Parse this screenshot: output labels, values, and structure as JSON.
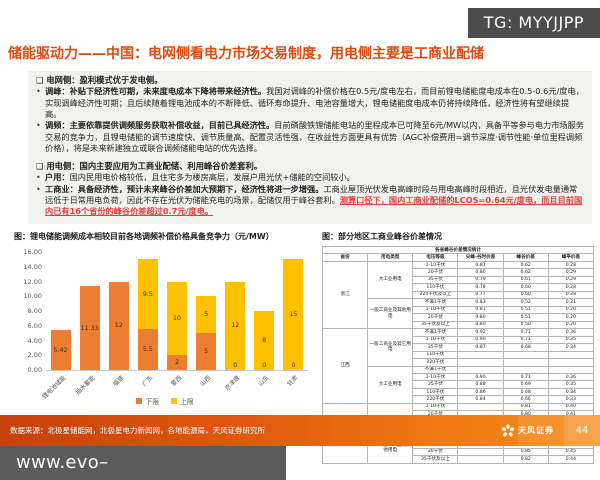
{
  "badge": {
    "text": "TG: MYYJJPP"
  },
  "title": "储能驱动力——中国：电网侧看电力市场交易制度，用电侧主要是工商业配储",
  "markers": {
    "section": "❑",
    "bullet": "•"
  },
  "sections": [
    {
      "header": "电网侧：盈利模式优于发电侧。",
      "bullets": [
        {
          "bold": "调峰：补贴下经济性可期，未来度电成本下降将带来经济性。",
          "text": "我国对调峰的补偿价格在0.5元/度电左右，而目前锂电储能度电成本在0.5-0.6元/度电，实现调峰经济性可期；且后续随着锂电池成本的不断降低、循环寿命提升、电池容量增大，锂电储能度电成本仍将持续降低，经济性将有望继续提高。",
          "highlight": ""
        },
        {
          "bold": "调频：主要依靠提供调频服务获取补偿收益，目前已具经济性。",
          "text": "目前磷酸铁锂储能电站的里程成本已可降至6元/MW以内，具备平等参与电力市场服务交易的竞争力，且锂电储能的调节速度快、调节质量高、配置灵活性强，在收益性方面更具有优势（AGC补偿费用=调节深度·调节性能·单位里程调频价格），将是未来新建独立或联合调频储能电站的优先选择。",
          "highlight": ""
        }
      ]
    },
    {
      "header": "用电侧：国内主要应用为工商业配储、利用峰谷价差套利。",
      "bullets": [
        {
          "bold": "户用：",
          "text": "国内民用电价格较低，且住宅多为楼房高层，发展户用光伏+储能的空间较小。",
          "highlight": ""
        },
        {
          "bold": "工商业：具备经济性，预计未来峰谷价差加大预期下，经济性将进一步增强。",
          "text": "工商业屋顶光伏发电高峰时段与用电高峰时段相近，且光伏发电量通常远低于日常用电负荷，因此不存在光伏为储能充电的场景，配储仅用于峰谷套利。",
          "highlight": "测算口径下，国内工商业配储的LCOS=0.64元/度电，而且目前国内已有16个省份的峰谷价差超过0.7元/度电。"
        }
      ]
    }
  ],
  "chart_data": [
    {
      "type": "bar",
      "stacked": true,
      "title": "图：锂电储能调频成本相较目前各地调频补偿价格具备竞争力（元/MW）",
      "categories": [
        "锂电池储能",
        "抽水蓄能",
        "福建",
        "广东",
        "蒙西",
        "山西",
        "京津唐",
        "山东",
        "甘肃"
      ],
      "series": [
        {
          "name": "下限",
          "color": "#ED7D31",
          "values": [
            5.42,
            11.33,
            12,
            5.5,
            2,
            5,
            0,
            0,
            0
          ]
        },
        {
          "name": "上限",
          "color": "#FFC000",
          "values": [
            0,
            0,
            0,
            9.5,
            10,
            5,
            12,
            8,
            15
          ]
        }
      ],
      "ylim": [
        0,
        16
      ],
      "ytick_step": 2,
      "legend_position": "bottom"
    },
    {
      "type": "table",
      "title": "图：部分地区工商业峰谷价差情况",
      "span_title": "各省峰谷价差情况统计",
      "columns": [
        "省份",
        "用电类型",
        "电压等级",
        "尖峰-谷时价差",
        "峰谷价差",
        "峰平价差"
      ],
      "groups": [
        {
          "province": "浙江",
          "blocks": [
            {
              "type": "大工业用电",
              "rows": [
                [
                  "1-10千伏",
                  "0.81",
                  "0.62",
                  "0.28"
                ],
                [
                  "20千伏",
                  "0.80",
                  "0.62",
                  "0.29"
                ],
                [
                  "35千伏",
                  "0.79",
                  "0.61",
                  "0.29"
                ],
                [
                  "110千伏",
                  "0.78",
                  "0.60",
                  "0.28"
                ],
                [
                  "220千伏及以上",
                  "0.77",
                  "0.60",
                  "0.28"
                ]
              ]
            },
            {
              "type": "一般工商业及其他用电",
              "rows": [
                [
                  "不满1千伏",
                  "0.83",
                  "0.52",
                  "0.21"
                ],
                [
                  "1-10千伏",
                  "0.81",
                  "0.51",
                  "0.20"
                ],
                [
                  "20千伏",
                  "0.80",
                  "0.51",
                  "0.20"
                ],
                [
                  "35千伏及以上",
                  "0.80",
                  "0.50",
                  "0.20"
                ]
              ]
            }
          ]
        },
        {
          "province": "江西",
          "blocks": [
            {
              "type": "一般工商业及其它用电",
              "rows": [
                [
                  "不满1千伏",
                  "0.92",
                  "0.71",
                  "0.36"
                ],
                [
                  "1-10千伏",
                  "0.90",
                  "0.71",
                  "0.35"
                ],
                [
                  "35千伏",
                  "0.87",
                  "0.68",
                  "0.34"
                ],
                [
                  "110千伏",
                  "",
                  "",
                  ""
                ],
                [
                  "220千伏",
                  "",
                  "",
                  ""
                ]
              ]
            },
            {
              "type": "大工业用电",
              "rows": [
                [
                  "不满1千伏",
                  "",
                  "",
                  ""
                ],
                [
                  "1-10千伏",
                  "0.90",
                  "0.71",
                  "0.36"
                ],
                [
                  "35千伏",
                  "0.88",
                  "0.69",
                  "0.35"
                ],
                [
                  "110千伏",
                  "0.86",
                  "0.68",
                  "0.34"
                ],
                [
                  "220千伏",
                  "0.84",
                  "0.66",
                  "0.33"
                ]
              ]
            }
          ]
        },
        {
          "province": "广东（广州、珠海、佛山、中山、东莞区域）",
          "blocks": [
            {
              "type": "一、大工业用电",
              "rows": [
                [
                  "1-10千伏",
                  "",
                  "0.81",
                  "0.40"
                ],
                [
                  "20千伏",
                  "",
                  "0.80",
                  "0.41"
                ],
                [
                  "35-110千伏",
                  "",
                  "0.77",
                  "0.41"
                ],
                [
                  "220千伏及以上",
                  "",
                  "0.74",
                  "0.39"
                ]
              ]
            },
            {
              "type": "二、一般工商业及其他用电",
              "rows": [
                [
                  "不满1千伏",
                  "",
                  "0.89",
                  "0.47"
                ],
                [
                  "1-10千伏",
                  "",
                  "0.85",
                  "0.45"
                ],
                [
                  "20千伏",
                  "",
                  "0.85",
                  "0.45"
                ],
                [
                  "35千伏及以上",
                  "",
                  "0.82",
                  "0.44"
                ]
              ]
            }
          ]
        }
      ]
    }
  ],
  "footer": {
    "source": "数据来源：北极星储能网，北极星电力新闻网，各地能源局，天风证券研究所",
    "brand": "天风证券",
    "page_number": "44"
  },
  "watermark": "www.evo–livewebentrance.org"
}
